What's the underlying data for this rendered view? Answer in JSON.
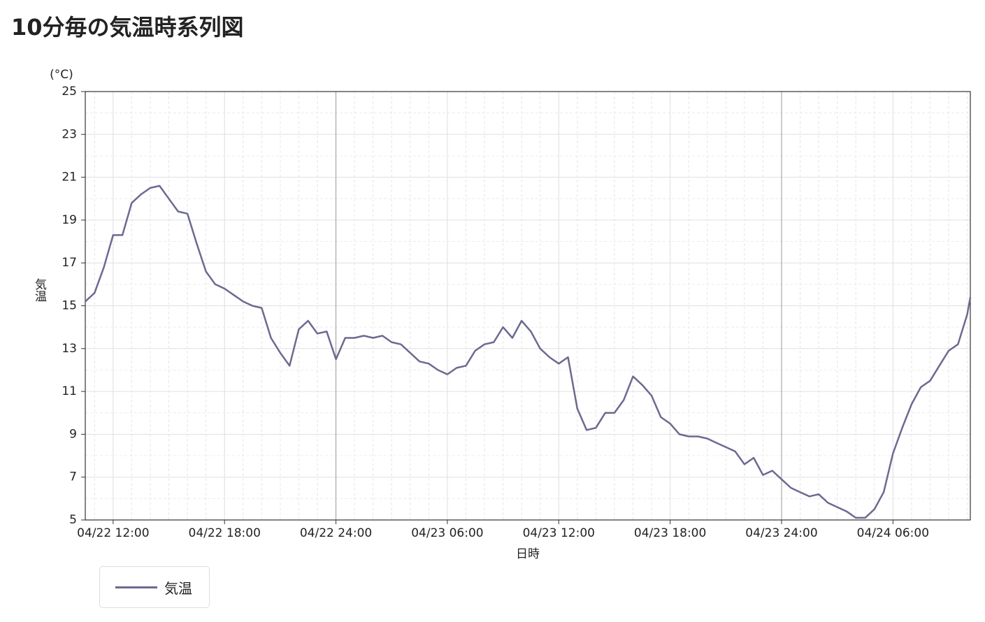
{
  "chart_data": {
    "type": "line",
    "title": "10分毎の気温時系列図",
    "y_unit": "(°C)",
    "ylabel": "気温",
    "xlabel": "日時",
    "x": [
      "04/22 10:30",
      "04/22 11:00",
      "04/22 11:30",
      "04/22 12:00",
      "04/22 12:30",
      "04/22 13:00",
      "04/22 13:30",
      "04/22 14:00",
      "04/22 14:30",
      "04/22 15:00",
      "04/22 15:30",
      "04/22 16:00",
      "04/22 16:30",
      "04/22 17:00",
      "04/22 17:30",
      "04/22 18:00",
      "04/22 18:30",
      "04/22 19:00",
      "04/22 19:30",
      "04/22 20:00",
      "04/22 20:30",
      "04/22 21:00",
      "04/22 21:30",
      "04/22 22:00",
      "04/22 22:30",
      "04/22 23:00",
      "04/22 23:30",
      "04/22 24:00",
      "04/23 00:30",
      "04/23 01:00",
      "04/23 01:30",
      "04/23 02:00",
      "04/23 02:30",
      "04/23 03:00",
      "04/23 03:30",
      "04/23 04:00",
      "04/23 04:30",
      "04/23 05:00",
      "04/23 05:30",
      "04/23 06:00",
      "04/23 06:30",
      "04/23 07:00",
      "04/23 07:30",
      "04/23 08:00",
      "04/23 08:30",
      "04/23 09:00",
      "04/23 09:30",
      "04/23 10:00",
      "04/23 10:30",
      "04/23 11:00",
      "04/23 11:30",
      "04/23 12:00",
      "04/23 12:30",
      "04/23 13:00",
      "04/23 13:30",
      "04/23 14:00",
      "04/23 14:30",
      "04/23 15:00",
      "04/23 15:30",
      "04/23 16:00",
      "04/23 16:30",
      "04/23 17:00",
      "04/23 17:30",
      "04/23 18:00",
      "04/23 18:30",
      "04/23 19:00",
      "04/23 19:30",
      "04/23 20:00",
      "04/23 20:30",
      "04/23 21:00",
      "04/23 21:30",
      "04/23 22:00",
      "04/23 22:30",
      "04/23 23:00",
      "04/23 23:30",
      "04/23 24:00",
      "04/24 00:30",
      "04/24 01:00",
      "04/24 01:30",
      "04/24 02:00",
      "04/24 02:30",
      "04/24 03:00",
      "04/24 03:30",
      "04/24 04:00",
      "04/24 04:30",
      "04/24 05:00",
      "04/24 05:30",
      "04/24 06:00",
      "04/24 06:30",
      "04/24 07:00",
      "04/24 07:30",
      "04/24 08:00",
      "04/24 08:30",
      "04/24 09:00",
      "04/24 09:30",
      "04/24 10:00",
      "04/24 10:10"
    ],
    "series": [
      {
        "name": "気温",
        "color": "#6b6a91",
        "values": [
          15.2,
          15.6,
          16.8,
          18.3,
          18.3,
          19.8,
          20.2,
          20.5,
          20.6,
          20.0,
          19.4,
          19.3,
          17.9,
          16.6,
          16.0,
          15.8,
          15.5,
          15.2,
          15.0,
          14.9,
          13.5,
          12.8,
          12.2,
          13.9,
          14.3,
          13.7,
          13.8,
          12.5,
          13.5,
          13.5,
          13.6,
          13.5,
          13.6,
          13.3,
          13.2,
          12.8,
          12.4,
          12.3,
          12.0,
          11.8,
          12.1,
          12.2,
          12.9,
          13.2,
          13.3,
          14.0,
          13.5,
          14.3,
          13.8,
          13.0,
          12.6,
          12.3,
          12.6,
          10.2,
          9.2,
          9.3,
          10.0,
          10.0,
          10.6,
          11.7,
          11.3,
          10.8,
          9.8,
          9.5,
          9.0,
          8.9,
          8.9,
          8.8,
          8.6,
          8.4,
          8.2,
          7.6,
          7.9,
          7.1,
          7.3,
          6.9,
          6.5,
          6.3,
          6.1,
          6.2,
          5.8,
          5.6,
          5.4,
          5.1,
          5.1,
          5.5,
          6.3,
          8.1,
          9.3,
          10.4,
          11.2,
          11.5,
          12.2,
          12.9,
          13.2,
          14.6,
          15.4
        ]
      }
    ],
    "xlim": [
      "04/22 10:30",
      "04/24 10:10"
    ],
    "xticks": [
      "04/22 12:00",
      "04/22 18:00",
      "04/22 24:00",
      "04/23 06:00",
      "04/23 12:00",
      "04/23 18:00",
      "04/23 24:00",
      "04/24 06:00"
    ],
    "ylim": [
      5,
      25
    ],
    "yticks": [
      5,
      7,
      9,
      11,
      13,
      15,
      17,
      19,
      21,
      23,
      25
    ],
    "grid": true
  }
}
